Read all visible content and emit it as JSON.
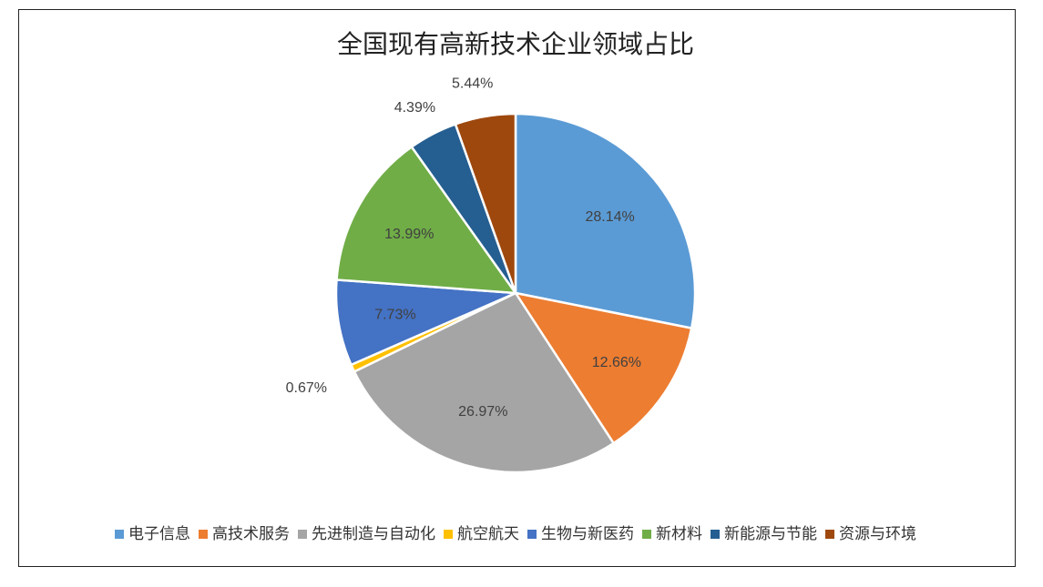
{
  "chart_data": {
    "type": "pie",
    "title": "全国现有高新技术企业领域占比",
    "categories": [
      "电子信息",
      "高技术服务",
      "先进制造与自动化",
      "航空航天",
      "生物与新医药",
      "新材料",
      "新能源与节能",
      "资源与环境"
    ],
    "values": [
      28.14,
      12.66,
      26.97,
      0.67,
      7.73,
      13.99,
      4.39,
      5.44
    ],
    "data_labels": [
      "28.14%",
      "12.66%",
      "26.97%",
      "0.67%",
      "7.73%",
      "13.99%",
      "4.39%",
      "5.44%"
    ],
    "colors": [
      "#5B9BD5",
      "#ED7D31",
      "#A5A5A5",
      "#FFC000",
      "#4472C4",
      "#70AD47",
      "#255E91",
      "#9E480E"
    ],
    "start_angle": "12 o'clock",
    "direction": "clockwise",
    "legend_position": "bottom"
  }
}
